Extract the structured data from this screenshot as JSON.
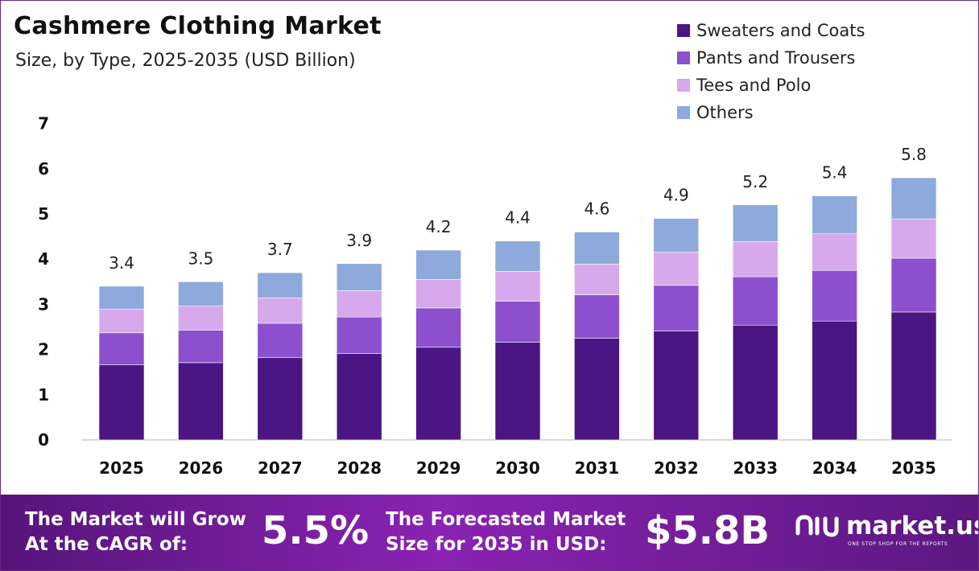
{
  "header": {
    "title": "Cashmere Clothing Market",
    "subtitle": "Size, by Type, 2025-2035 (USD Billion)"
  },
  "chart_data": {
    "type": "bar",
    "stacked": true,
    "categories": [
      "2025",
      "2026",
      "2027",
      "2028",
      "2029",
      "2030",
      "2031",
      "2032",
      "2033",
      "2034",
      "2035"
    ],
    "series": [
      {
        "name": "Sweaters and Coats",
        "color": "#4b1583",
        "values": [
          1.66,
          1.71,
          1.82,
          1.91,
          2.05,
          2.16,
          2.25,
          2.41,
          2.54,
          2.63,
          2.83
        ]
      },
      {
        "name": "Pants and Trousers",
        "color": "#8c4fce",
        "values": [
          0.71,
          0.72,
          0.76,
          0.81,
          0.87,
          0.91,
          0.96,
          1.01,
          1.07,
          1.12,
          1.19
        ]
      },
      {
        "name": "Tees and Polo",
        "color": "#d7a9ec",
        "values": [
          0.52,
          0.53,
          0.56,
          0.58,
          0.63,
          0.66,
          0.68,
          0.73,
          0.78,
          0.81,
          0.87
        ]
      },
      {
        "name": "Others",
        "color": "#8eaadc",
        "values": [
          0.51,
          0.54,
          0.56,
          0.6,
          0.65,
          0.67,
          0.71,
          0.75,
          0.81,
          0.84,
          0.91
        ]
      }
    ],
    "totals": [
      "3.4",
      "3.5",
      "3.7",
      "3.9",
      "4.2",
      "4.4",
      "4.6",
      "4.9",
      "5.2",
      "5.4",
      "5.8"
    ],
    "y_ticks": [
      "0",
      "1",
      "2",
      "3",
      "4",
      "5",
      "6",
      "7"
    ],
    "ylim": [
      0,
      7
    ],
    "grid": false,
    "legend_position": "top-right"
  },
  "footer": {
    "cagr_text_line1": "The Market will Grow",
    "cagr_text_line2": "At the CAGR of:",
    "cagr_value": "5.5%",
    "forecast_text_line1": "The Forecasted Market",
    "forecast_text_line2": "Size for 2035 in USD:",
    "forecast_value": "$5.8B",
    "brand_name": "market.us",
    "brand_tagline": "ONE STOP SHOP FOR THE REPORTS"
  }
}
